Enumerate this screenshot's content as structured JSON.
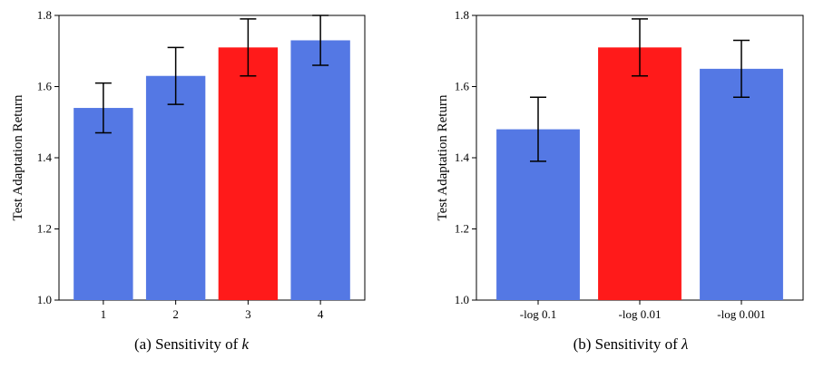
{
  "chart_data": [
    {
      "type": "bar",
      "title": "",
      "xlabel": "",
      "ylabel": "Test Adaptation Return",
      "ylim": [
        1.0,
        1.8
      ],
      "yticks": [
        "1.0",
        "1.2",
        "1.4",
        "1.6",
        "1.8"
      ],
      "categories": [
        "1",
        "2",
        "3",
        "4"
      ],
      "values": [
        1.54,
        1.63,
        1.71,
        1.73
      ],
      "errors_low": [
        1.47,
        1.55,
        1.63,
        1.66
      ],
      "errors_high": [
        1.61,
        1.71,
        1.79,
        1.8
      ],
      "highlight_index": 2,
      "caption_prefix": "(a) Sensitivity of ",
      "caption_symbol": "k"
    },
    {
      "type": "bar",
      "title": "",
      "xlabel": "",
      "ylabel": "Test Adaptation Return",
      "ylim": [
        1.0,
        1.8
      ],
      "yticks": [
        "1.0",
        "1.2",
        "1.4",
        "1.6",
        "1.8"
      ],
      "categories": [
        "-log 0.1",
        "-log 0.01",
        "-log 0.001"
      ],
      "values": [
        1.48,
        1.71,
        1.65
      ],
      "errors_low": [
        1.39,
        1.63,
        1.57
      ],
      "errors_high": [
        1.57,
        1.79,
        1.73
      ],
      "highlight_index": 1,
      "caption_prefix": "(b) Sensitivity of ",
      "caption_symbol": "λ"
    }
  ],
  "colors": {
    "bar": "#5478e4",
    "highlight": "#ff1a1a",
    "error": "#000000",
    "axis": "#000000"
  }
}
